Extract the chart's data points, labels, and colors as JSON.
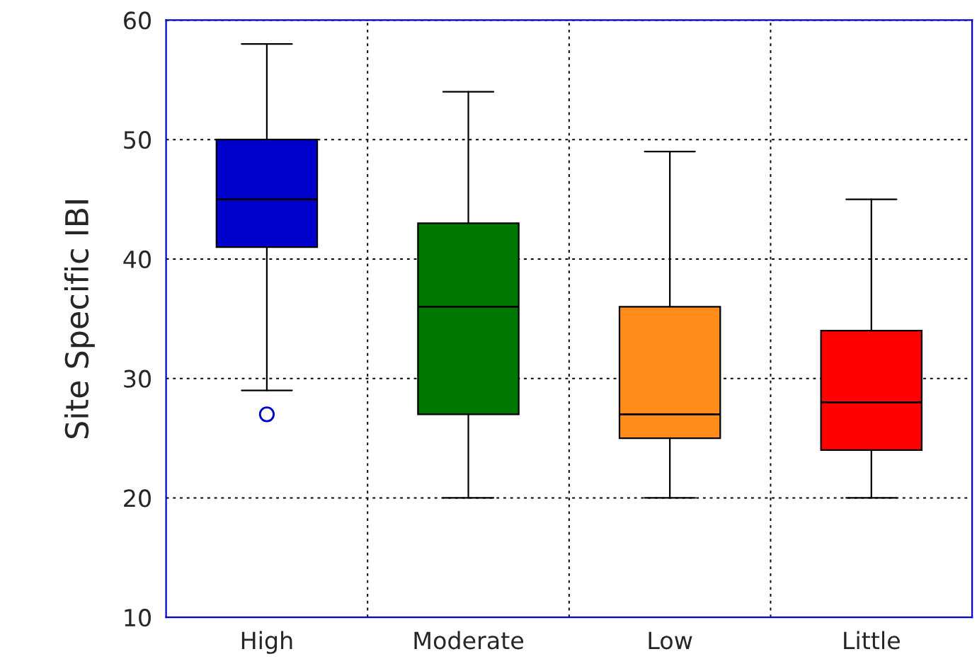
{
  "chart_data": {
    "type": "box",
    "ylabel": "Site Specific IBI",
    "categories": [
      "High",
      "Moderate",
      "Low",
      "Little"
    ],
    "colors": [
      "#0000cc",
      "#007700",
      "#ff8c1a",
      "#ff0000"
    ],
    "boxes": [
      {
        "low": 29,
        "q1": 41,
        "median": 45,
        "q3": 50,
        "high": 58,
        "outliers": [
          27
        ]
      },
      {
        "low": 20,
        "q1": 27,
        "median": 36,
        "q3": 43,
        "high": 54
      },
      {
        "low": 20,
        "q1": 25,
        "median": 27,
        "q3": 36,
        "high": 49
      },
      {
        "low": 20,
        "q1": 24,
        "median": 28,
        "q3": 34,
        "high": 45
      }
    ],
    "ylim": [
      10,
      60
    ],
    "yticks": [
      10,
      20,
      30,
      40,
      50,
      60
    ],
    "grid": true
  }
}
